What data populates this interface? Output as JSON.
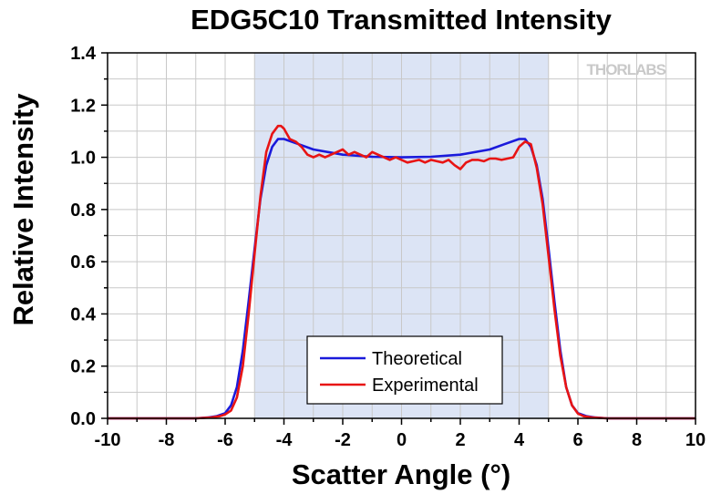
{
  "chart_data": {
    "type": "line",
    "title": "EDG5C10 Transmitted Intensity",
    "xlabel": "Scatter Angle (°)",
    "ylabel": "Relative Intensity",
    "xlim": [
      -10,
      10
    ],
    "ylim": [
      0,
      1.4
    ],
    "xticks": [
      -10,
      -8,
      -6,
      -4,
      -2,
      0,
      2,
      4,
      6,
      8,
      10
    ],
    "yticks": [
      0.0,
      0.2,
      0.4,
      0.6,
      0.8,
      1.0,
      1.2,
      1.4
    ],
    "xtick_labels": [
      "-10",
      "-8",
      "-6",
      "-4",
      "-2",
      "0",
      "2",
      "4",
      "6",
      "8",
      "10"
    ],
    "ytick_labels": [
      "0.0",
      "0.2",
      "0.4",
      "0.6",
      "0.8",
      "1.0",
      "1.2",
      "1.4"
    ],
    "grid": true,
    "shaded_region": {
      "x": [
        -5,
        5
      ],
      "color": "#dce4f5"
    },
    "legend_position": "bottom-center",
    "watermark": "THORLABS",
    "series": [
      {
        "name": "Theoretical",
        "color": "#1a1adb",
        "x": [
          -10,
          -7,
          -6.6,
          -6.3,
          -6,
          -5.8,
          -5.6,
          -5.4,
          -5.2,
          -5.0,
          -4.8,
          -4.6,
          -4.4,
          -4.2,
          -4.0,
          -3.5,
          -3.0,
          -2.0,
          -1.0,
          0,
          1.0,
          2.0,
          3.0,
          3.5,
          4.0,
          4.2,
          4.4,
          4.6,
          4.8,
          5.0,
          5.2,
          5.4,
          5.6,
          5.8,
          6.0,
          6.3,
          6.6,
          7,
          10
        ],
        "y": [
          0,
          0.0,
          0.003,
          0.008,
          0.02,
          0.05,
          0.12,
          0.26,
          0.45,
          0.65,
          0.84,
          0.97,
          1.04,
          1.07,
          1.07,
          1.05,
          1.03,
          1.01,
          1.002,
          1.0,
          1.002,
          1.01,
          1.03,
          1.05,
          1.07,
          1.07,
          1.04,
          0.97,
          0.84,
          0.65,
          0.45,
          0.26,
          0.12,
          0.05,
          0.02,
          0.008,
          0.003,
          0.0,
          0
        ]
      },
      {
        "name": "Experimental",
        "color": "#e81414",
        "x": [
          -10,
          -7,
          -6.5,
          -6.2,
          -6.0,
          -5.8,
          -5.6,
          -5.4,
          -5.2,
          -5.0,
          -4.8,
          -4.6,
          -4.4,
          -4.2,
          -4.1,
          -4.0,
          -3.8,
          -3.6,
          -3.4,
          -3.2,
          -3.0,
          -2.8,
          -2.6,
          -2.4,
          -2.2,
          -2.0,
          -1.8,
          -1.6,
          -1.4,
          -1.2,
          -1.0,
          -0.8,
          -0.6,
          -0.4,
          -0.2,
          0.0,
          0.2,
          0.4,
          0.6,
          0.8,
          1.0,
          1.2,
          1.4,
          1.6,
          1.8,
          2.0,
          2.2,
          2.4,
          2.6,
          2.8,
          3.0,
          3.2,
          3.4,
          3.6,
          3.8,
          4.0,
          4.2,
          4.4,
          4.6,
          4.8,
          5.0,
          5.2,
          5.4,
          5.6,
          5.8,
          6.0,
          6.2,
          6.5,
          7,
          10
        ],
        "y": [
          0,
          0.0,
          0.003,
          0.008,
          0.015,
          0.03,
          0.08,
          0.2,
          0.4,
          0.63,
          0.85,
          1.02,
          1.09,
          1.12,
          1.12,
          1.11,
          1.07,
          1.06,
          1.04,
          1.01,
          1.0,
          1.01,
          1.0,
          1.01,
          1.02,
          1.03,
          1.01,
          1.02,
          1.01,
          1.0,
          1.02,
          1.01,
          1.0,
          0.99,
          1.0,
          0.99,
          0.98,
          0.985,
          0.99,
          0.98,
          0.99,
          0.985,
          0.98,
          0.99,
          0.97,
          0.955,
          0.98,
          0.99,
          0.99,
          0.985,
          0.995,
          0.995,
          0.99,
          0.995,
          1.0,
          1.04,
          1.06,
          1.05,
          0.96,
          0.82,
          0.62,
          0.42,
          0.24,
          0.12,
          0.05,
          0.018,
          0.008,
          0.003,
          0.0,
          0
        ]
      }
    ]
  }
}
